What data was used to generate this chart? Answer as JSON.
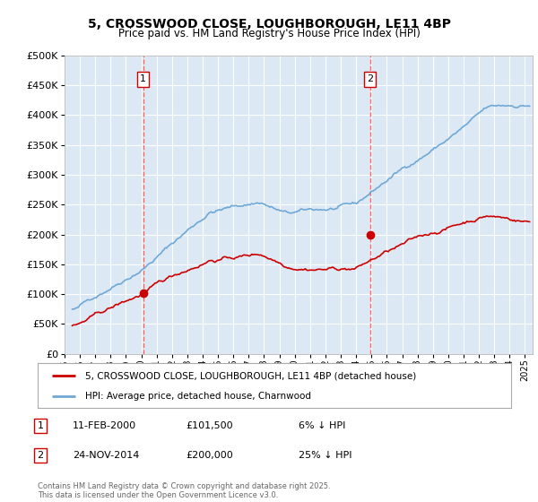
{
  "title_line1": "5, CROSSWOOD CLOSE, LOUGHBOROUGH, LE11 4BP",
  "title_line2": "Price paid vs. HM Land Registry's House Price Index (HPI)",
  "background_color": "#dce9f5",
  "fig_bg_color": "#ffffff",
  "hpi_color": "#6fa8d6",
  "price_color": "#cc0000",
  "dashed_line_color": "#ff6666",
  "ylim": [
    0,
    500000
  ],
  "yticks": [
    0,
    50000,
    100000,
    150000,
    200000,
    250000,
    300000,
    350000,
    400000,
    450000,
    500000
  ],
  "sale1_date": 2000.12,
  "sale1_price": 101500,
  "sale1_label": "1",
  "sale2_date": 2014.9,
  "sale2_price": 200000,
  "sale2_label": "2",
  "legend_price_label": "5, CROSSWOOD CLOSE, LOUGHBOROUGH, LE11 4BP (detached house)",
  "legend_hpi_label": "HPI: Average price, detached house, Charnwood",
  "ann1_date": "11-FEB-2000",
  "ann1_price": "£101,500",
  "ann1_pct": "6% ↓ HPI",
  "ann2_date": "24-NOV-2014",
  "ann2_price": "£200,000",
  "ann2_pct": "25% ↓ HPI",
  "footer": "Contains HM Land Registry data © Crown copyright and database right 2025.\nThis data is licensed under the Open Government Licence v3.0.",
  "xstart": 1995.5,
  "xend": 2025.5
}
